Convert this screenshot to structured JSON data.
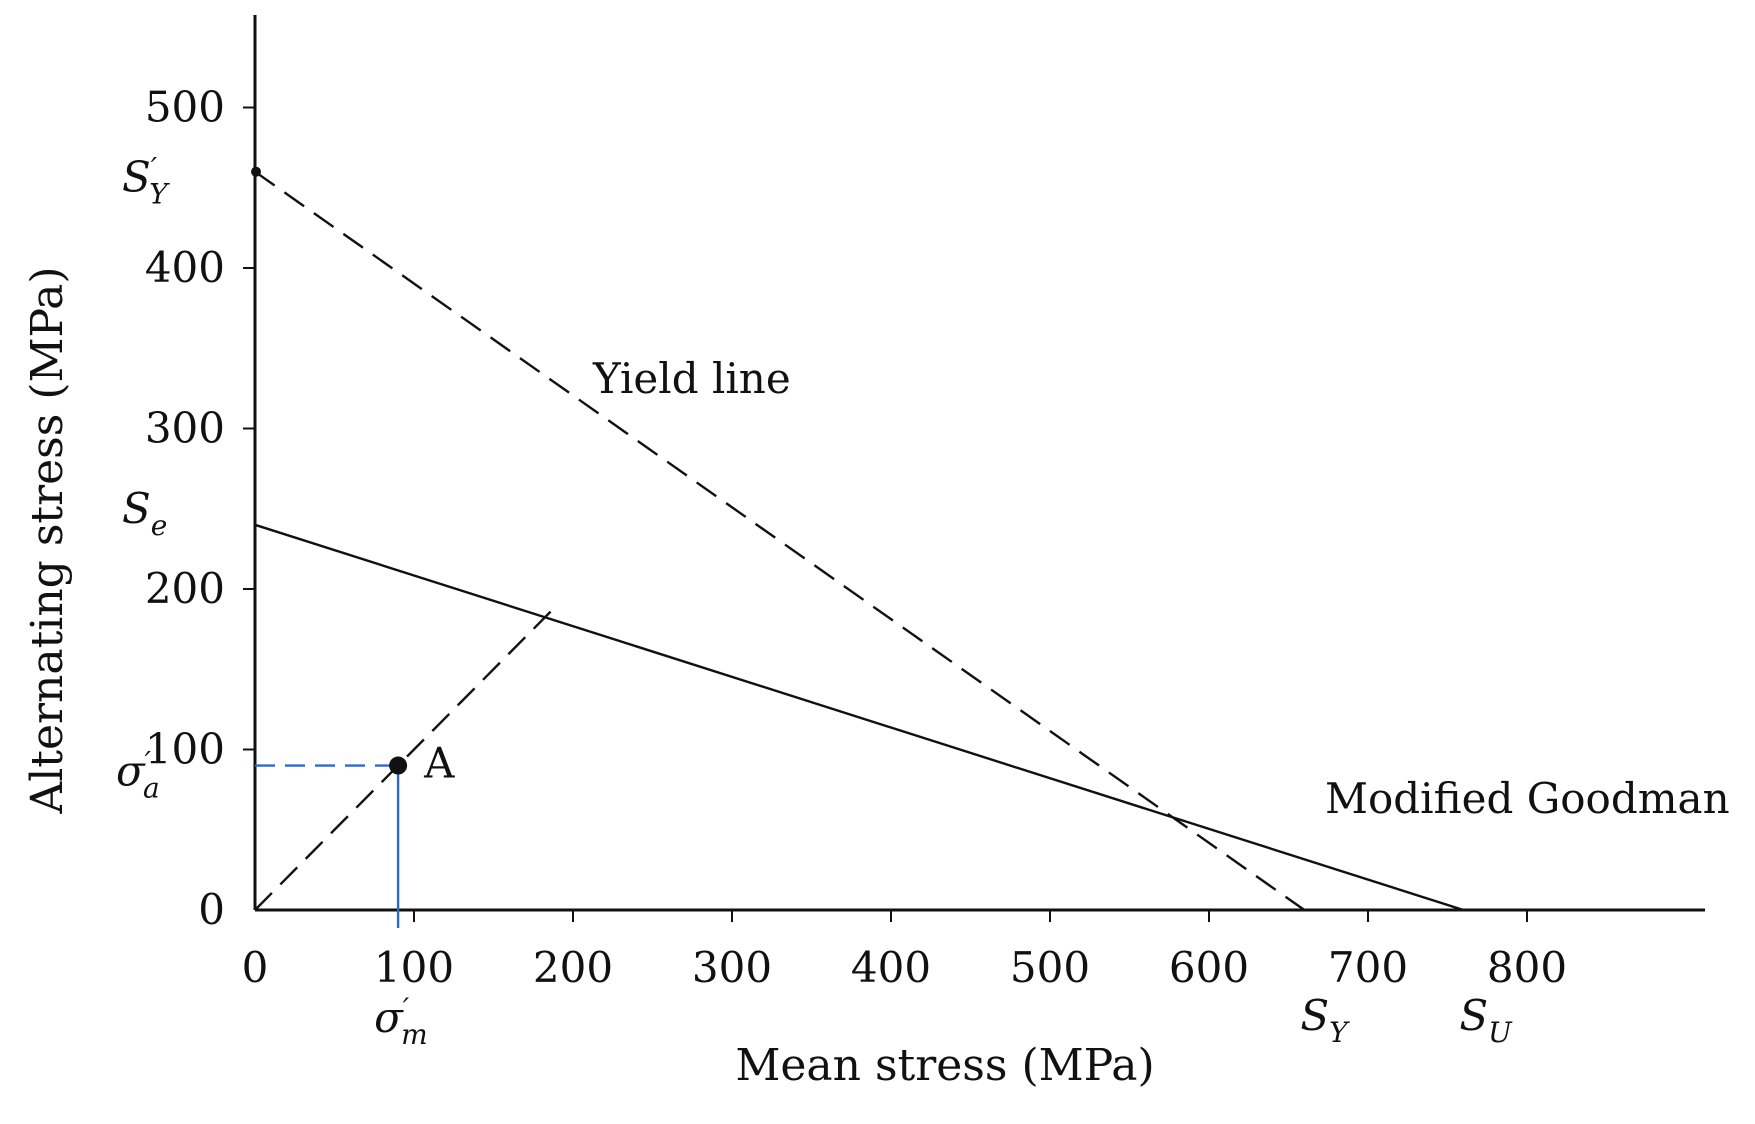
{
  "chart_data": {
    "type": "line",
    "xlabel": "Mean stress (MPa)",
    "ylabel": "Alternating stress (MPa)",
    "xlim": [
      0,
      900
    ],
    "ylim": [
      0,
      550
    ],
    "x_ticks": [
      0,
      100,
      200,
      300,
      400,
      500,
      600,
      700,
      800
    ],
    "y_ticks": [
      0,
      100,
      200,
      300,
      400,
      500
    ],
    "grid": false,
    "series": [
      {
        "name": "Yield line",
        "style": "dashed",
        "color": "#111111",
        "points": [
          [
            0,
            460
          ],
          [
            660,
            0
          ]
        ]
      },
      {
        "name": "Modified Goodman",
        "style": "solid",
        "color": "#111111",
        "points": [
          [
            0,
            240
          ],
          [
            760,
            0
          ]
        ]
      },
      {
        "name": "",
        "style": "dashed",
        "color": "#111111",
        "points": [
          [
            0,
            0
          ],
          [
            190,
            190
          ]
        ]
      }
    ],
    "point": {
      "label": "A",
      "x": 90,
      "y": 90
    },
    "guides_color": "#2a6bd1",
    "symbols": {
      "sy_prime": {
        "base": "S",
        "sup": "′",
        "sub": "Y",
        "y_value": 460
      },
      "se": {
        "base": "S",
        "sub": "e",
        "y_value": 240
      },
      "sigma_a": {
        "base": "σ",
        "sup": "′",
        "sub": "a",
        "y_value": 90
      },
      "sigma_m": {
        "base": "σ",
        "sup": "′",
        "sub": "m",
        "x_value": 90
      },
      "sy": {
        "base": "S",
        "sub": "Y",
        "x_value": 660
      },
      "su": {
        "base": "S",
        "sub": "U",
        "x_value": 760
      }
    }
  }
}
